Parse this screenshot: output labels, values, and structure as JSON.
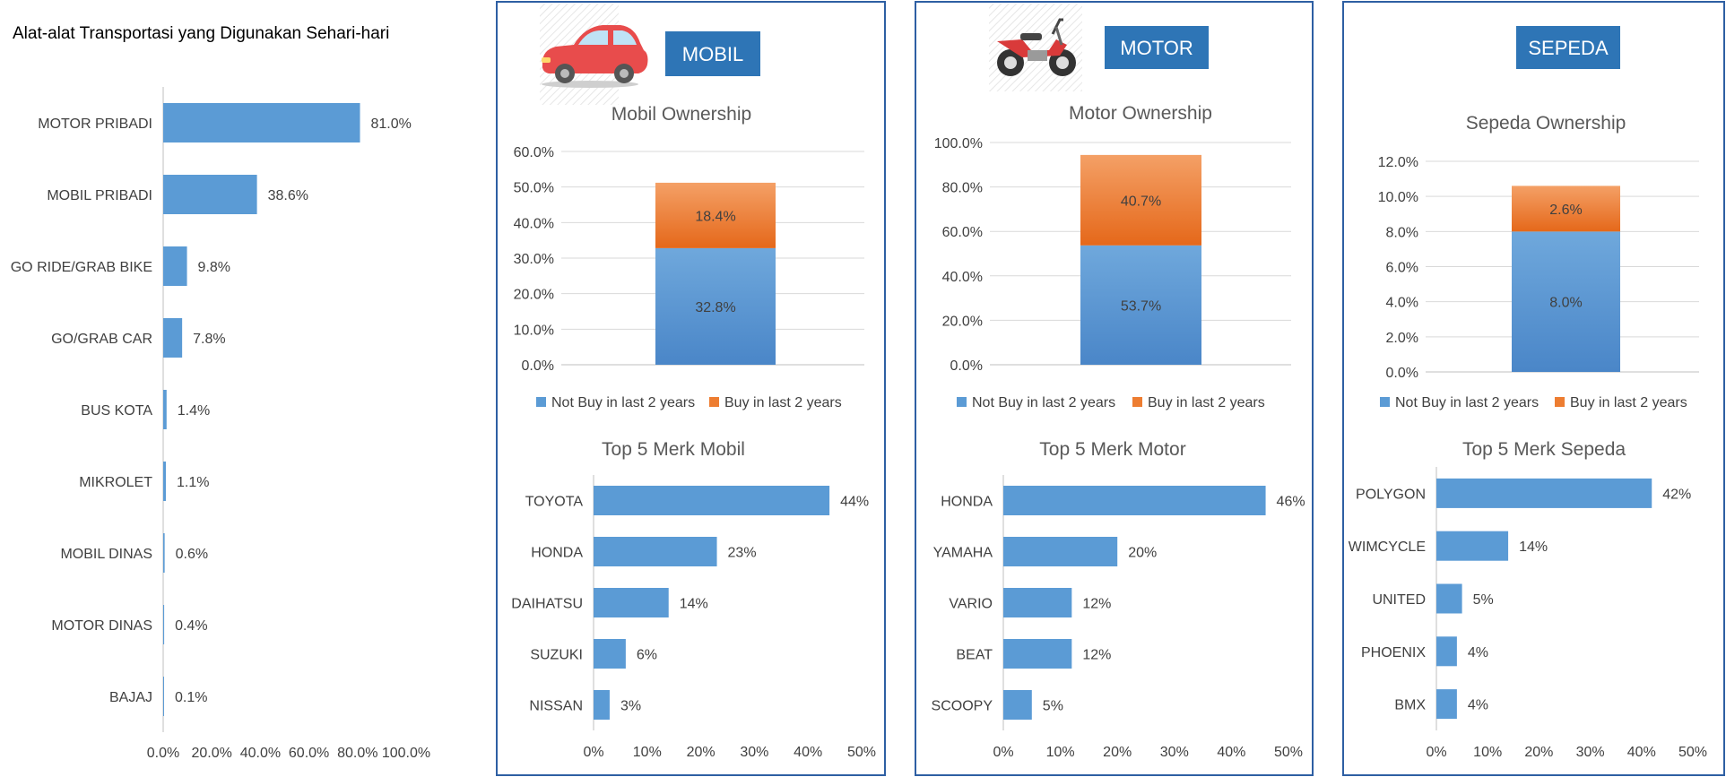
{
  "chart_data": [
    {
      "type": "bar",
      "orientation": "horizontal",
      "title": "Alat-alat Transportasi yang Digunakan Sehari-hari",
      "categories": [
        "MOTOR PRIBADI",
        "MOBIL PRIBADI",
        "GO RIDE/GRAB BIKE",
        "GO/GRAB CAR",
        "BUS KOTA",
        "MIKROLET",
        "MOBIL DINAS",
        "MOTOR DINAS",
        "BAJAJ"
      ],
      "values": [
        81.0,
        38.6,
        9.8,
        7.8,
        1.4,
        1.1,
        0.6,
        0.4,
        0.1
      ],
      "value_labels": [
        "81.0%",
        "38.6%",
        "9.8%",
        "7.8%",
        "1.4%",
        "1.1%",
        "0.6%",
        "0.4%",
        "0.1%"
      ],
      "xlim": [
        0,
        100
      ],
      "xticks": [
        "0.0%",
        "20.0%",
        "40.0%",
        "60.0%",
        "80.0%",
        "100.0%"
      ],
      "grid": false
    },
    {
      "panel_label": "MOBIL",
      "icon": "car-icon",
      "ownership": {
        "type": "bar",
        "stacked": true,
        "title": "Mobil Ownership",
        "series": [
          {
            "name": "Not Buy in last 2 years",
            "values": [
              32.8
            ],
            "label": "32.8%"
          },
          {
            "name": "Buy in last 2 years",
            "values": [
              18.4
            ],
            "label": "18.4%"
          }
        ],
        "ylim": [
          0,
          60
        ],
        "yticks": [
          "0.0%",
          "10.0%",
          "20.0%",
          "30.0%",
          "40.0%",
          "50.0%",
          "60.0%"
        ],
        "grid": true,
        "legend": "bottom"
      },
      "top5": {
        "type": "bar",
        "orientation": "horizontal",
        "title": "Top 5 Merk Mobil",
        "categories": [
          "TOYOTA",
          "HONDA",
          "DAIHATSU",
          "SUZUKI",
          "NISSAN"
        ],
        "values": [
          44,
          23,
          14,
          6,
          3
        ],
        "value_labels": [
          "44%",
          "23%",
          "14%",
          "6%",
          "3%"
        ],
        "xlim": [
          0,
          50
        ],
        "xticks": [
          "0%",
          "10%",
          "20%",
          "30%",
          "40%",
          "50%"
        ]
      }
    },
    {
      "panel_label": "MOTOR",
      "icon": "motorcycle-icon",
      "ownership": {
        "type": "bar",
        "stacked": true,
        "title": "Motor Ownership",
        "series": [
          {
            "name": "Not Buy in last 2 years",
            "values": [
              53.7
            ],
            "label": "53.7%"
          },
          {
            "name": "Buy in last 2 years",
            "values": [
              40.7
            ],
            "label": "40.7%"
          }
        ],
        "ylim": [
          0,
          100
        ],
        "yticks": [
          "0.0%",
          "20.0%",
          "40.0%",
          "60.0%",
          "80.0%",
          "100.0%"
        ],
        "grid": true,
        "legend": "bottom"
      },
      "top5": {
        "type": "bar",
        "orientation": "horizontal",
        "title": "Top 5 Merk Motor",
        "categories": [
          "HONDA",
          "YAMAHA",
          "VARIO",
          "BEAT",
          "SCOOPY"
        ],
        "values": [
          46,
          20,
          12,
          12,
          5
        ],
        "value_labels": [
          "46%",
          "20%",
          "12%",
          "12%",
          "5%"
        ],
        "xlim": [
          0,
          50
        ],
        "xticks": [
          "0%",
          "10%",
          "20%",
          "30%",
          "40%",
          "50%"
        ]
      }
    },
    {
      "panel_label": "SEPEDA",
      "icon": "",
      "ownership": {
        "type": "bar",
        "stacked": true,
        "title": "Sepeda Ownership",
        "series": [
          {
            "name": "Not Buy in last 2 years",
            "values": [
              8.0
            ],
            "label": "8.0%"
          },
          {
            "name": "Buy in last 2 years",
            "values": [
              2.6
            ],
            "label": "2.6%"
          }
        ],
        "ylim": [
          0,
          12
        ],
        "yticks": [
          "0.0%",
          "2.0%",
          "4.0%",
          "6.0%",
          "8.0%",
          "10.0%",
          "12.0%"
        ],
        "grid": true,
        "legend": "bottom"
      },
      "top5": {
        "type": "bar",
        "orientation": "horizontal",
        "title": "Top 5 Merk Sepeda",
        "categories": [
          "POLYGON",
          "WIMCYCLE",
          "UNITED",
          "PHOENIX",
          "BMX"
        ],
        "values": [
          42,
          14,
          5,
          4,
          4
        ],
        "value_labels": [
          "42%",
          "14%",
          "5%",
          "4%",
          "4%"
        ],
        "xlim": [
          0,
          50
        ],
        "xticks": [
          "0%",
          "10%",
          "20%",
          "30%",
          "40%",
          "50%"
        ]
      }
    }
  ],
  "colors": {
    "bar": "#5B9BD5",
    "not_buy": "#5B9BD5",
    "buy": "#ED7D31",
    "panel_border": "#2E5FA3",
    "badge": "#2E75B6",
    "badge_text": "#ffffff",
    "grid": "#D9D9D9",
    "axis": "#BFBFBF",
    "text": "#404040",
    "title": "#595959"
  }
}
